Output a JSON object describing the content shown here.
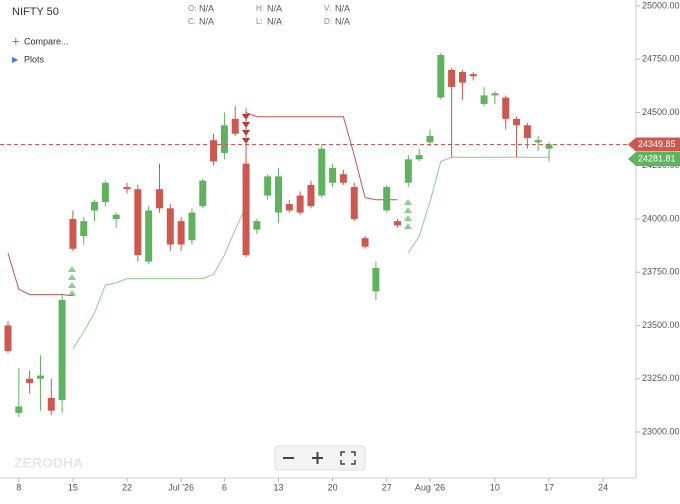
{
  "chart_data": {
    "type": "candlestick",
    "title": "NIFTY 50",
    "ohlc_labels": [
      {
        "key": "O:",
        "value": "N/A"
      },
      {
        "key": "H:",
        "value": "N/A"
      },
      {
        "key": "V:",
        "value": "N/A"
      },
      {
        "key": "C:",
        "value": "N/A"
      },
      {
        "key": "L:",
        "value": "N/A"
      },
      {
        "key": "D:",
        "value": "N/A"
      }
    ],
    "menu": [
      "Compare...",
      "Plots"
    ],
    "watermark": "ZERODHA",
    "categories": [
      null,
      "8",
      null,
      null,
      null,
      null,
      "15",
      null,
      null,
      null,
      null,
      "22",
      null,
      null,
      null,
      null,
      "Jul '26",
      null,
      null,
      null,
      "6",
      null,
      null,
      null,
      null,
      "13",
      null,
      null,
      null,
      null,
      "20",
      null,
      null,
      null,
      null,
      "27",
      null,
      null,
      null,
      "Aug '26",
      null,
      null,
      null,
      null,
      null,
      "10",
      null,
      null,
      null,
      null,
      "17",
      null,
      null,
      null,
      null,
      "24"
    ],
    "open": [
      23500,
      23090,
      23250,
      23250,
      23160,
      23150,
      24000,
      23920,
      24040,
      24080,
      24000,
      24150,
      24140,
      23800,
      24140,
      24050,
      23990,
      23900,
      24060,
      24370,
      24310,
      24470,
      24260,
      23950,
      24110,
      24030,
      24070,
      24110,
      24160,
      24110,
      24170,
      24210,
      24150,
      23910,
      23660,
      24040,
      23990,
      24170,
      24280,
      24360,
      24570,
      24700,
      24690,
      24680,
      24540,
      24580,
      24570,
      24470,
      24440,
      24360,
      24330,
      null,
      null,
      null,
      null,
      null
    ],
    "high": [
      23520,
      23300,
      23290,
      23360,
      23250,
      23650,
      24040,
      24010,
      24090,
      24180,
      24030,
      24170,
      24160,
      24060,
      24260,
      24070,
      24010,
      24050,
      24190,
      24400,
      24500,
      24530,
      24520,
      24000,
      24210,
      24240,
      24090,
      24130,
      24180,
      24350,
      24260,
      24230,
      24170,
      23920,
      23800,
      24160,
      24000,
      24300,
      24330,
      24420,
      24780,
      24710,
      24700,
      24690,
      24620,
      24600,
      24580,
      24480,
      24450,
      24390,
      24360,
      null,
      null,
      null,
      null,
      null
    ],
    "low": [
      23370,
      23070,
      23180,
      23100,
      23080,
      23090,
      23850,
      23880,
      23990,
      24060,
      23960,
      24120,
      23800,
      23790,
      24030,
      23850,
      23850,
      23880,
      24050,
      24250,
      24280,
      24390,
      23820,
      23930,
      24090,
      23980,
      24030,
      24020,
      24050,
      24100,
      24150,
      24160,
      23990,
      23860,
      23620,
      24030,
      23960,
      24150,
      24270,
      24340,
      24560,
      24290,
      24560,
      24650,
      24530,
      24540,
      24420,
      24290,
      24330,
      24320,
      24270,
      null,
      null,
      null,
      null,
      null
    ],
    "close": [
      23380,
      23120,
      23230,
      23265,
      23100,
      23620,
      23860,
      23990,
      24080,
      24170,
      24020,
      24140,
      23830,
      24040,
      24050,
      23880,
      23880,
      24030,
      24180,
      24270,
      24440,
      24400,
      23830,
      23990,
      24200,
      24200,
      24040,
      24030,
      24060,
      24330,
      24240,
      24170,
      24000,
      23870,
      23770,
      24150,
      23970,
      24280,
      24300,
      24390,
      24770,
      24620,
      24640,
      24670,
      24580,
      24590,
      24470,
      24440,
      24380,
      24370,
      24350,
      null,
      null,
      null,
      null,
      null
    ],
    "up_color": "#5fb35f",
    "down_color": "#d0574d",
    "lines": [
      {
        "color": "#c0574d",
        "values": [
          23840,
          23670,
          23645,
          23645,
          23645,
          23645,
          23640,
          null,
          null,
          null,
          null,
          null,
          null,
          null,
          null,
          null,
          null,
          null,
          null,
          null,
          null,
          null,
          24500,
          24480,
          24480,
          24480,
          24480,
          24480,
          24480,
          24480,
          24480,
          24480,
          24300,
          24100,
          24090,
          24090,
          24090,
          null,
          null,
          null,
          null,
          null,
          null,
          null,
          null,
          null,
          null,
          null,
          null,
          null,
          null,
          null,
          null,
          null,
          null,
          null
        ]
      },
      {
        "color": "#8fcc8f",
        "values": [
          null,
          null,
          null,
          null,
          null,
          null,
          23390,
          23470,
          23560,
          23690,
          23700,
          23720,
          23720,
          23720,
          23720,
          23720,
          23720,
          23720,
          23720,
          23740,
          23830,
          23950,
          24060,
          null,
          null,
          null,
          null,
          null,
          null,
          null,
          null,
          null,
          null,
          null,
          null,
          null,
          null,
          23840,
          23920,
          24080,
          24270,
          24290,
          24290,
          24290,
          24290,
          24290,
          24290,
          24290,
          24290,
          24290,
          24290,
          null,
          null,
          null,
          null,
          null
        ]
      }
    ],
    "price_labels": [
      {
        "value": 24349.85,
        "color": "#d0574d"
      },
      {
        "value": 24281.81,
        "color": "#5fb35f"
      }
    ],
    "ylim": [
      22784,
      25028
    ],
    "yticks": [
      {
        "value": 23000,
        "label": "23000.00"
      },
      {
        "value": 23250,
        "label": "23250.00"
      },
      {
        "value": 23500,
        "label": "23500.00"
      },
      {
        "value": 23750,
        "label": "23750.00"
      },
      {
        "value": 24000,
        "label": "24000.00"
      },
      {
        "value": 24250,
        "label": "24250.00"
      },
      {
        "value": 24500,
        "label": "24500.00"
      },
      {
        "value": 24750,
        "label": "24750.00"
      },
      {
        "value": 25000,
        "label": "25000.00"
      }
    ],
    "grid": false
  }
}
